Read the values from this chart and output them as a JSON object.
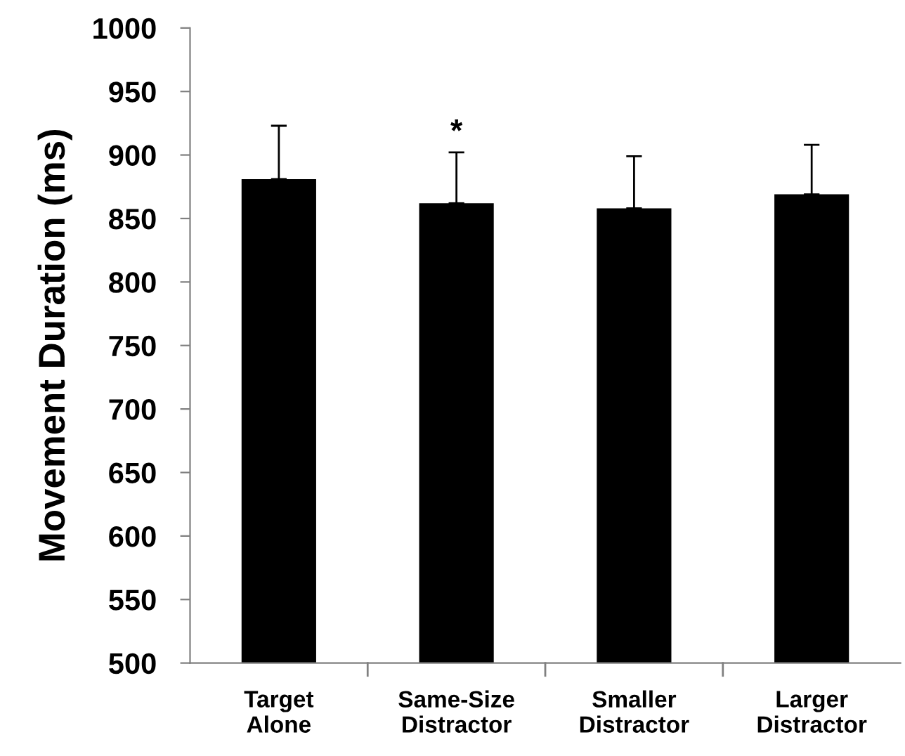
{
  "chart_data": {
    "type": "bar",
    "ylabel": "Movement Duration (ms)",
    "categories": [
      "Target\nAlone",
      "Same-Size\nDistractor",
      "Smaller\nDistractor",
      "Larger\nDistractor"
    ],
    "values": [
      881,
      862,
      858,
      869
    ],
    "errors": [
      [
        881,
        923
      ],
      [
        862,
        902
      ],
      [
        858,
        899
      ],
      [
        869,
        908
      ]
    ],
    "color": "#000000",
    "ylim": [
      500,
      1000
    ],
    "yticks": [
      500,
      550,
      600,
      650,
      700,
      750,
      800,
      850,
      900,
      950,
      1000
    ],
    "grid": false,
    "legend": false,
    "annotations": [
      {
        "text": "*",
        "x": "Same-Size\nDistractor",
        "y": 902
      }
    ]
  }
}
